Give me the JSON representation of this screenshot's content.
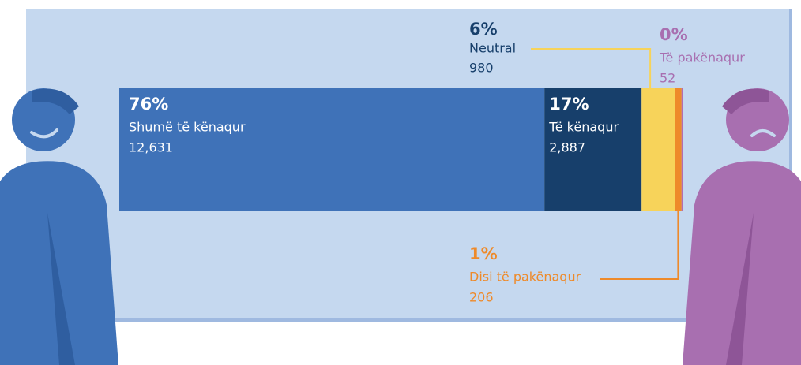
{
  "chart_data": {
    "type": "stacked-bar",
    "series": [
      {
        "name": "Shumë të kënaqur",
        "color": "#3f72b8",
        "values": [
          12631
        ],
        "value_labels": [
          "12,631"
        ],
        "percent_label": "76%"
      },
      {
        "name": "Të kënaqur",
        "color": "#173f6b",
        "values": [
          2887
        ],
        "value_labels": [
          "2,887"
        ],
        "percent_label": "17%"
      },
      {
        "name": "Neutral",
        "color": "#f7d35a",
        "values": [
          980
        ],
        "percent_label": "6%"
      },
      {
        "name": "Disi të pakënaqur",
        "color": "#ee8a2a",
        "values": [
          206
        ],
        "percent_label": "1%"
      },
      {
        "name": "Të pakënaqur",
        "color": "#b56cb0",
        "values": [
          52
        ],
        "percent_label": "0%"
      }
    ]
  }
}
